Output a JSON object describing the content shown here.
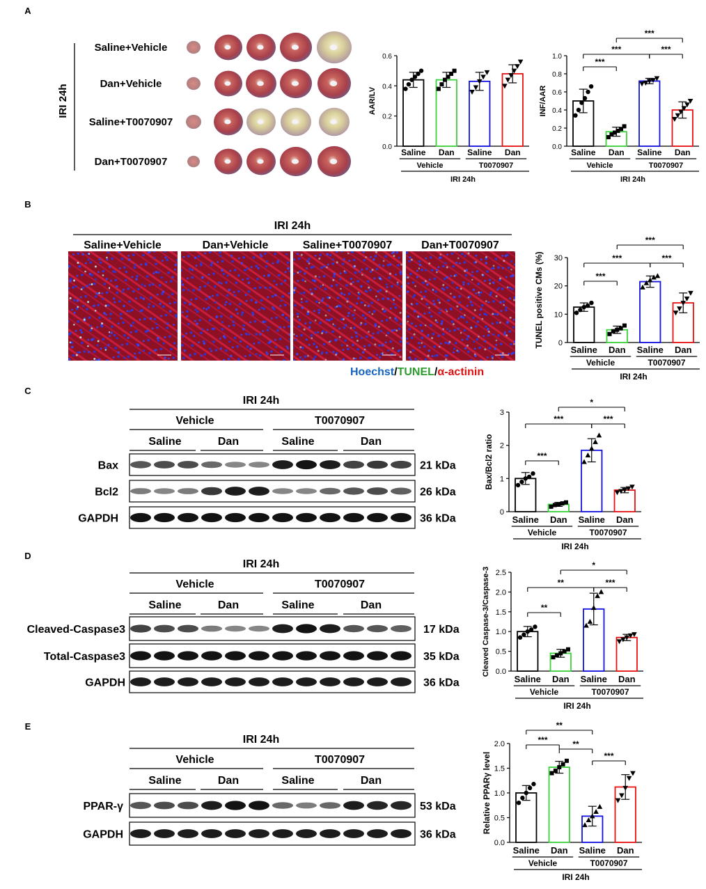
{
  "colors": {
    "saline_vehicle": "#000000",
    "dan_vehicle": "#3ad33a",
    "saline_t": "#1010e0",
    "dan_t": "#e81010"
  },
  "panels": {
    "A": {
      "letter": "A",
      "iri": "IRI 24h",
      "rows": [
        "Saline+Vehicle",
        "Dan+Vehicle",
        "Saline+T0070907",
        "Dan+T0070907"
      ],
      "charts": [
        {
          "type": "bar",
          "ylabel": "AAR/LV",
          "ylim": [
            0,
            0.6
          ],
          "yticks": [
            "0.0",
            "0.2",
            "0.4",
            "0.6"
          ],
          "categories": [
            "Saline",
            "Dan",
            "Saline",
            "Dan"
          ],
          "groups": [
            "Vehicle",
            "T0070907"
          ],
          "bottom": "IRI 24h",
          "values": [
            0.44,
            0.44,
            0.43,
            0.48
          ],
          "errors": [
            0.05,
            0.05,
            0.06,
            0.06
          ],
          "points": [
            [
              0.38,
              0.41,
              0.44,
              0.46,
              0.48,
              0.5
            ],
            [
              0.38,
              0.41,
              0.44,
              0.46,
              0.48,
              0.5
            ],
            [
              0.36,
              0.39,
              0.43,
              0.46,
              0.49
            ],
            [
              0.4,
              0.44,
              0.47,
              0.5,
              0.53,
              0.56
            ]
          ],
          "markers": [
            "circle",
            "square",
            "tri-down",
            "tri-down"
          ],
          "sig": []
        },
        {
          "type": "bar",
          "ylabel": "INF/AAR",
          "ylim": [
            0,
            1.0
          ],
          "yticks": [
            "0.0",
            "0.2",
            "0.4",
            "0.6",
            "0.8",
            "1.0"
          ],
          "categories": [
            "Saline",
            "Dan",
            "Saline",
            "Dan"
          ],
          "groups": [
            "Vehicle",
            "T0070907"
          ],
          "bottom": "IRI 24h",
          "values": [
            0.5,
            0.16,
            0.72,
            0.4
          ],
          "errors": [
            0.13,
            0.05,
            0.03,
            0.09
          ],
          "points": [
            [
              0.34,
              0.4,
              0.48,
              0.53,
              0.6,
              0.66
            ],
            [
              0.1,
              0.13,
              0.15,
              0.17,
              0.19,
              0.22
            ],
            [
              0.69,
              0.7,
              0.72,
              0.73,
              0.75
            ],
            [
              0.3,
              0.34,
              0.38,
              0.42,
              0.46,
              0.5
            ]
          ],
          "markers": [
            "circle",
            "square",
            "tri-down",
            "tri-down"
          ],
          "sig": [
            {
              "a": 0,
              "b": 1,
              "label": "***"
            },
            {
              "a": 0,
              "b": 2,
              "label": "***"
            },
            {
              "a": 2,
              "b": 3,
              "label": "***"
            },
            {
              "a": 1,
              "b": 3,
              "label": "***"
            }
          ]
        }
      ]
    },
    "B": {
      "letter": "B",
      "iri": "IRI 24h",
      "headers": [
        "Saline+Vehicle",
        "Dan+Vehicle",
        "Saline+T0070907",
        "Dan+T0070907"
      ],
      "stain": {
        "hoechst": "Hoechst",
        "tunel": "TUNEL",
        "actinin": "α-actinin",
        "sep": "/"
      },
      "chart": {
        "type": "bar",
        "ylabel": "TUNEL positive CMs (%)",
        "ylim": [
          0,
          30
        ],
        "yticks": [
          "0",
          "10",
          "20",
          "30"
        ],
        "categories": [
          "Saline",
          "Dan",
          "Saline",
          "Dan"
        ],
        "groups": [
          "Vehicle",
          "T0070907"
        ],
        "bottom": "IRI 24h",
        "values": [
          12.5,
          4.5,
          21.5,
          14.0
        ],
        "errors": [
          1.5,
          1.3,
          2.0,
          3.5
        ],
        "points": [
          [
            10.5,
            11.5,
            12.5,
            13.0,
            14.0
          ],
          [
            3.0,
            4.0,
            4.5,
            5.0,
            6.0
          ],
          [
            19.5,
            21.0,
            22.0,
            23.0,
            23.5
          ],
          [
            10.5,
            12.0,
            14.0,
            15.5,
            17.5
          ]
        ],
        "markers": [
          "circle",
          "square",
          "tri-up",
          "tri-down"
        ],
        "sig": [
          {
            "a": 0,
            "b": 1,
            "label": "***"
          },
          {
            "a": 0,
            "b": 2,
            "label": "***"
          },
          {
            "a": 2,
            "b": 3,
            "label": "***"
          },
          {
            "a": 1,
            "b": 3,
            "label": "***"
          }
        ]
      }
    },
    "C": {
      "letter": "C",
      "iri": "IRI 24h",
      "vehicle": "Vehicle",
      "t": "T0070907",
      "saline": "Saline",
      "dan": "Dan",
      "bands": [
        {
          "label": "Bax",
          "kda": "21 kDa"
        },
        {
          "label": "Bcl2",
          "kda": "26 kDa"
        },
        {
          "label": "GAPDH",
          "kda": "36 kDa"
        }
      ],
      "chart": {
        "type": "bar",
        "ylabel": "Bax/Bcl2 ratio",
        "ylim": [
          0,
          3
        ],
        "yticks": [
          "0",
          "1",
          "2",
          "3"
        ],
        "categories": [
          "Saline",
          "Dan",
          "Saline",
          "Dan"
        ],
        "groups": [
          "Vehicle",
          "T0070907"
        ],
        "bottom": "IRI 24h",
        "values": [
          1.0,
          0.22,
          1.85,
          0.65
        ],
        "errors": [
          0.18,
          0.06,
          0.35,
          0.08
        ],
        "points": [
          [
            0.8,
            0.9,
            1.0,
            1.05,
            1.15
          ],
          [
            0.15,
            0.2,
            0.22,
            0.25,
            0.28
          ],
          [
            1.5,
            1.7,
            1.9,
            2.1,
            2.3
          ],
          [
            0.58,
            0.62,
            0.65,
            0.7,
            0.75
          ]
        ],
        "markers": [
          "circle",
          "square",
          "tri-up",
          "tri-down"
        ],
        "sig": [
          {
            "a": 0,
            "b": 1,
            "label": "***"
          },
          {
            "a": 0,
            "b": 2,
            "label": "***"
          },
          {
            "a": 2,
            "b": 3,
            "label": "***"
          },
          {
            "a": 1,
            "b": 3,
            "label": "*"
          }
        ]
      }
    },
    "D": {
      "letter": "D",
      "iri": "IRI 24h",
      "vehicle": "Vehicle",
      "t": "T0070907",
      "saline": "Saline",
      "dan": "Dan",
      "bands": [
        {
          "label": "Cleaved-Caspase3",
          "kda": "17 kDa"
        },
        {
          "label": "Total-Caspase3",
          "kda": "35 kDa"
        },
        {
          "label": "GAPDH",
          "kda": "36 kDa"
        }
      ],
      "chart": {
        "type": "bar",
        "ylabel": "Cleaved Caspase-3/Caspase-3",
        "ylim": [
          0,
          2.5
        ],
        "yticks": [
          "0.0",
          "0.5",
          "1.0",
          "1.5",
          "2.0",
          "2.5"
        ],
        "categories": [
          "Saline",
          "Dan",
          "Saline",
          "Dan"
        ],
        "groups": [
          "Vehicle",
          "T0070907"
        ],
        "bottom": "IRI 24h",
        "values": [
          1.0,
          0.45,
          1.57,
          0.85
        ],
        "errors": [
          0.13,
          0.1,
          0.4,
          0.08
        ],
        "points": [
          [
            0.85,
            0.92,
            1.0,
            1.05,
            1.12
          ],
          [
            0.35,
            0.4,
            0.45,
            0.5,
            0.55
          ],
          [
            1.15,
            1.25,
            1.6,
            1.9,
            2.0
          ],
          [
            0.75,
            0.8,
            0.85,
            0.9,
            0.93
          ]
        ],
        "markers": [
          "circle",
          "square",
          "tri-up",
          "tri-down"
        ],
        "sig": [
          {
            "a": 0,
            "b": 1,
            "label": "**"
          },
          {
            "a": 0,
            "b": 2,
            "label": "**"
          },
          {
            "a": 2,
            "b": 3,
            "label": "***"
          },
          {
            "a": 1,
            "b": 3,
            "label": "*"
          }
        ]
      }
    },
    "E": {
      "letter": "E",
      "iri": "IRI 24h",
      "vehicle": "Vehicle",
      "t": "T0070907",
      "saline": "Saline",
      "dan": "Dan",
      "bands": [
        {
          "label": "PPAR-γ",
          "kda": "53 kDa"
        },
        {
          "label": "GAPDH",
          "kda": "36 kDa"
        }
      ],
      "chart": {
        "type": "bar",
        "ylabel": "Relative PPARγ level",
        "ylim": [
          0,
          2.0
        ],
        "yticks": [
          "0.0",
          "0.5",
          "1.0",
          "1.5",
          "2.0"
        ],
        "categories": [
          "Saline",
          "Dan",
          "Saline",
          "Dan"
        ],
        "groups": [
          "Vehicle",
          "T0070907"
        ],
        "bottom": "IRI 24h",
        "values": [
          1.0,
          1.52,
          0.53,
          1.12
        ],
        "errors": [
          0.15,
          0.12,
          0.2,
          0.25
        ],
        "points": [
          [
            0.8,
            0.9,
            1.0,
            1.1,
            1.18
          ],
          [
            1.4,
            1.45,
            1.52,
            1.58,
            1.65
          ],
          [
            0.35,
            0.45,
            0.53,
            0.62,
            0.72
          ],
          [
            0.85,
            0.95,
            1.1,
            1.3,
            1.4
          ]
        ],
        "markers": [
          "circle",
          "square",
          "tri-up",
          "tri-down"
        ],
        "sig": [
          {
            "a": 0,
            "b": 1,
            "label": "***"
          },
          {
            "a": 0,
            "b": 2,
            "label": "**"
          },
          {
            "a": 2,
            "b": 3,
            "label": "***"
          },
          {
            "a": 1,
            "b": 2,
            "label": "**"
          }
        ]
      }
    }
  }
}
